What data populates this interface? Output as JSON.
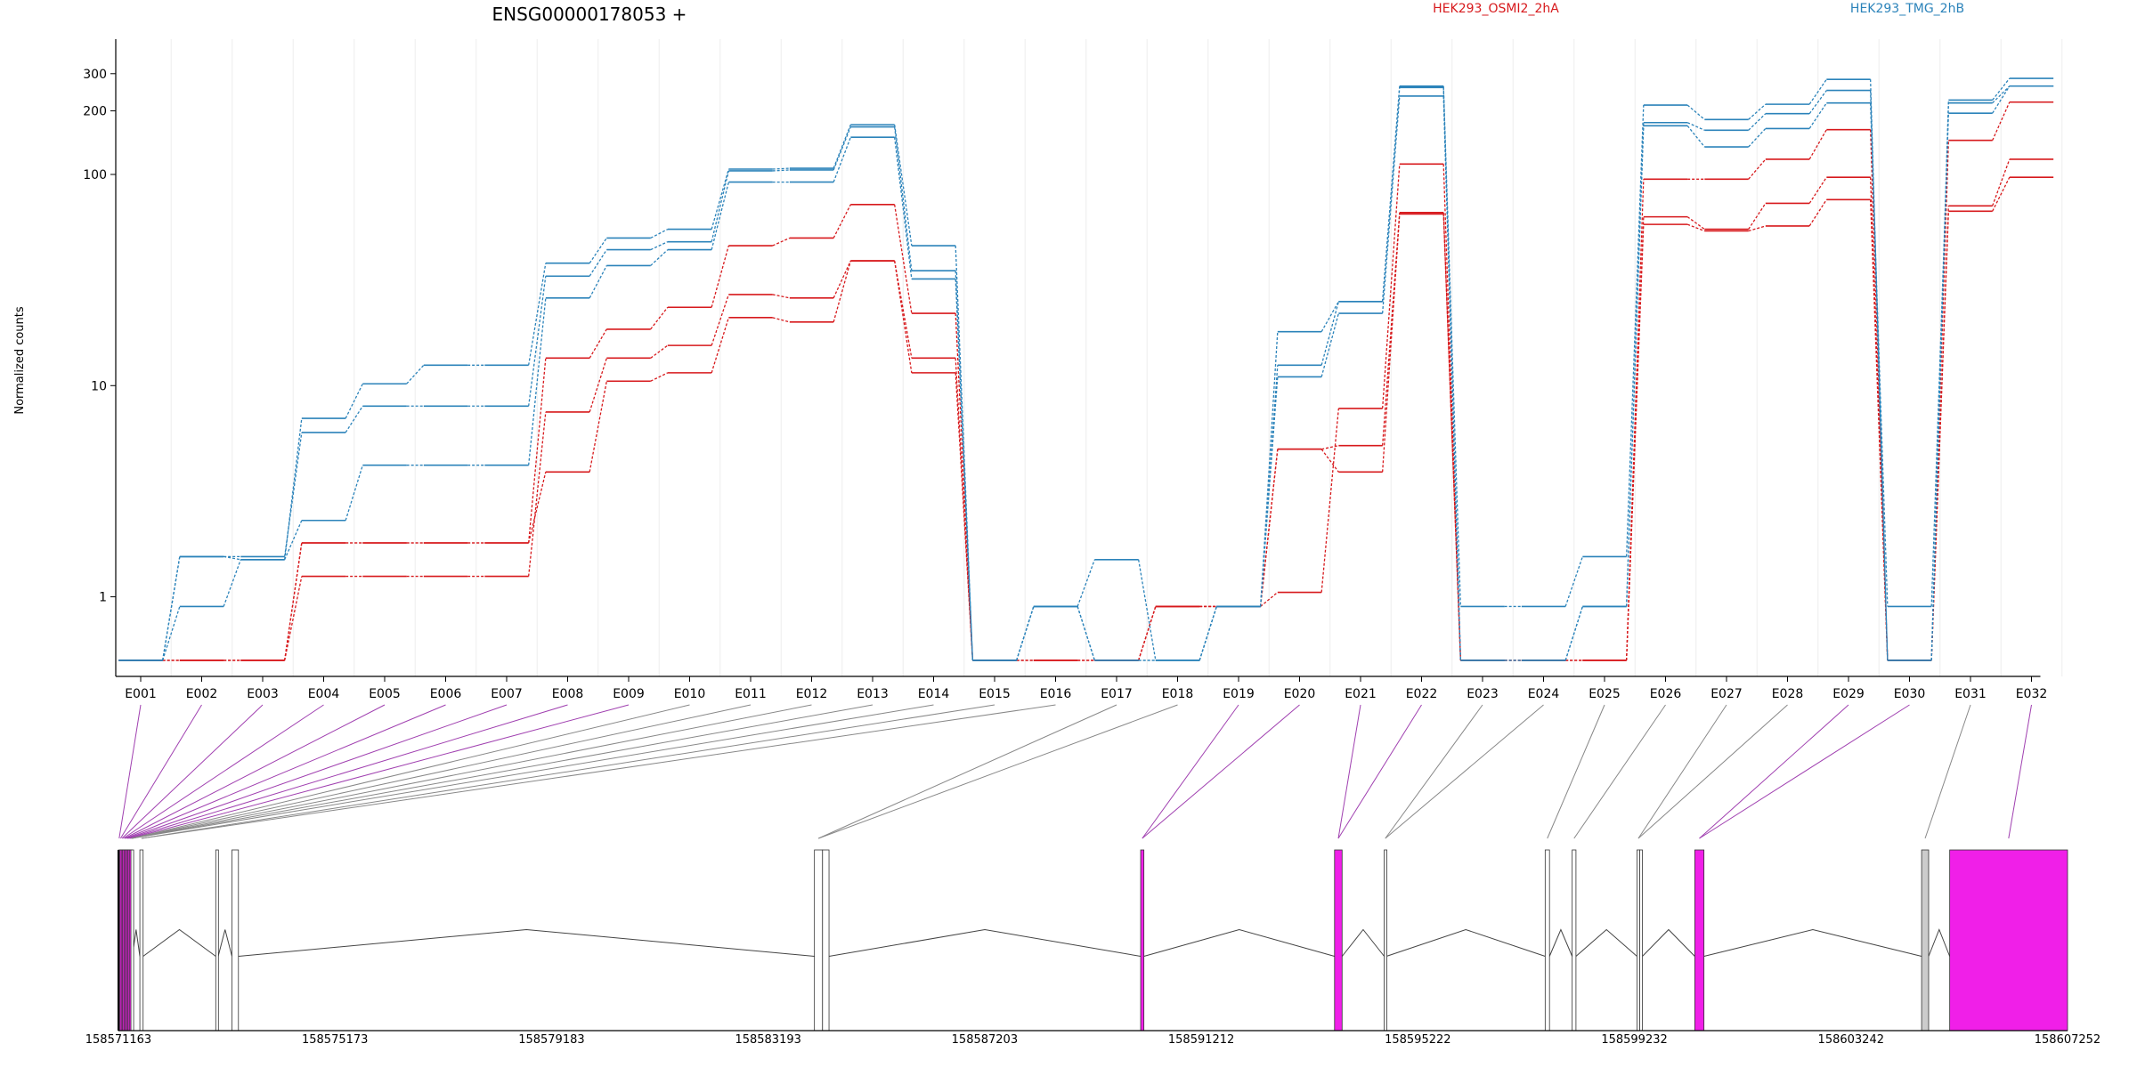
{
  "title": "ENSG00000178053 +",
  "legend": [
    {
      "label": "HEK293_OSMI2_2hA",
      "color": "#d7191c"
    },
    {
      "label": "HEK293_TMG_2hB",
      "color": "#2b83ba"
    }
  ],
  "colors": {
    "exon_highlight": "#f01fe8",
    "exon_plain": "#ffffff",
    "exon_grey": "#cccccc",
    "connector": "#888888",
    "connector_highlight": "#a040b0"
  },
  "chart_data": {
    "type": "line",
    "scale": "log",
    "ylabel": "Normalized counts",
    "yticks": [
      1,
      10,
      100,
      200,
      300
    ],
    "ylim": [
      0.5,
      360
    ],
    "categories": [
      "E001",
      "E002",
      "E003",
      "E004",
      "E005",
      "E006",
      "E007",
      "E008",
      "E009",
      "E010",
      "E011",
      "E012",
      "E013",
      "E014",
      "E015",
      "E016",
      "E017",
      "E018",
      "E019",
      "E020",
      "E021",
      "E022",
      "E023",
      "E024",
      "E025",
      "E026",
      "E027",
      "E028",
      "E029",
      "E030",
      "E031",
      "E032"
    ],
    "series": [
      {
        "group": "HEK293_OSMI2_2hA",
        "values": [
          0.5,
          0.5,
          0.5,
          1.8,
          1.8,
          1.8,
          1.8,
          13.5,
          18.5,
          23.5,
          46,
          50,
          72,
          22,
          0.5,
          0.5,
          0.5,
          0.9,
          0.9,
          1.05,
          7.8,
          112,
          0.5,
          0.5,
          0.5,
          95,
          95,
          118,
          163,
          0.5,
          145,
          220
        ]
      },
      {
        "group": "HEK293_OSMI2_2hA",
        "values": [
          0.5,
          0.5,
          0.5,
          1.25,
          1.25,
          1.25,
          1.25,
          7.5,
          13.5,
          15.5,
          27,
          26,
          39,
          13.5,
          0.5,
          0.5,
          0.5,
          0.9,
          0.9,
          5,
          5.2,
          66,
          0.5,
          0.5,
          0.5,
          63,
          55,
          73,
          97,
          0.5,
          71,
          118
        ]
      },
      {
        "group": "HEK293_OSMI2_2hA",
        "values": [
          0.5,
          0.5,
          0.5,
          1.8,
          1.8,
          1.8,
          1.8,
          3.9,
          10.5,
          11.5,
          21,
          20,
          39,
          11.5,
          0.5,
          0.5,
          0.5,
          0.9,
          0.9,
          5,
          3.9,
          65,
          0.5,
          0.5,
          0.5,
          58,
          54,
          57,
          76,
          0.5,
          67,
          97
        ]
      },
      {
        "group": "HEK293_TMG_2hB",
        "values": [
          0.5,
          1.55,
          1.5,
          7,
          10.2,
          12.5,
          12.5,
          38,
          50,
          55,
          106,
          107,
          172,
          46,
          0.5,
          0.9,
          1.5,
          0.5,
          0.9,
          18,
          25,
          262,
          0.9,
          0.9,
          1.55,
          213,
          182,
          215,
          282,
          0.5,
          225,
          285
        ]
      },
      {
        "group": "HEK293_TMG_2hB",
        "values": [
          0.5,
          1.55,
          1.55,
          6,
          8,
          8,
          8,
          33,
          44,
          48,
          104,
          105,
          168,
          35,
          0.5,
          0.9,
          0.5,
          0.5,
          0.9,
          12.5,
          25,
          258,
          0.5,
          0.5,
          0.9,
          176,
          162,
          194,
          250,
          0.5,
          218,
          262
        ]
      },
      {
        "group": "HEK293_TMG_2hB",
        "values": [
          0.5,
          0.9,
          1.5,
          2.3,
          4.2,
          4.2,
          4.2,
          26,
          37,
          44,
          92,
          92,
          150,
          32,
          0.5,
          0.9,
          0.5,
          0.5,
          0.9,
          11,
          22,
          235,
          0.5,
          0.5,
          0.9,
          170,
          135,
          165,
          218,
          0.9,
          195,
          262
        ]
      }
    ],
    "xlabel": ""
  },
  "gene_model": {
    "coord_ticks": [
      "158571163",
      "158575173",
      "158579183",
      "158583193",
      "158587203",
      "158591212",
      "158595222",
      "158599232",
      "158603242",
      "158607252"
    ],
    "coord_range": [
      158571163,
      158607252
    ],
    "exons": [
      {
        "id": "E001",
        "start": 158571163,
        "end": 158571190,
        "style": "highlight"
      },
      {
        "id": "E002",
        "start": 158571190,
        "end": 158571215,
        "style": "highlight"
      },
      {
        "id": "E003",
        "start": 158571215,
        "end": 158571240,
        "style": "highlight"
      },
      {
        "id": "E004",
        "start": 158571240,
        "end": 158571265,
        "style": "highlight"
      },
      {
        "id": "E005",
        "start": 158571265,
        "end": 158571290,
        "style": "highlight"
      },
      {
        "id": "E006",
        "start": 158571290,
        "end": 158571315,
        "style": "highlight"
      },
      {
        "id": "E007",
        "start": 158571315,
        "end": 158571340,
        "style": "highlight"
      },
      {
        "id": "E008",
        "start": 158571340,
        "end": 158571365,
        "style": "highlight"
      },
      {
        "id": "E009",
        "start": 158571365,
        "end": 158571395,
        "style": "highlight"
      },
      {
        "id": "E010",
        "start": 158571395,
        "end": 158571420,
        "style": "plain"
      },
      {
        "id": "E011",
        "start": 158571560,
        "end": 158571620,
        "style": "plain"
      },
      {
        "id": "E012",
        "start": 158572965,
        "end": 158573010,
        "style": "plain"
      },
      {
        "id": "E013",
        "start": 158573265,
        "end": 158573385,
        "style": "plain"
      },
      {
        "id": "E014",
        "start": 158584050,
        "end": 158584200,
        "style": "plain"
      },
      {
        "id": "E015",
        "start": 158584200,
        "end": 158584320,
        "style": "plain"
      },
      {
        "id": "E016",
        "start": 158590090,
        "end": 158590150,
        "style": "highlight"
      },
      {
        "id": "E017",
        "start": 158593680,
        "end": 158593820,
        "style": "highlight"
      },
      {
        "id": "E018",
        "start": 158594600,
        "end": 158594640,
        "style": "plain"
      },
      {
        "id": "E019",
        "start": 158597580,
        "end": 158597660,
        "style": "plain"
      },
      {
        "id": "E020",
        "start": 158598080,
        "end": 158598150,
        "style": "plain"
      },
      {
        "id": "E021",
        "start": 158599280,
        "end": 158599330,
        "style": "plain"
      },
      {
        "id": "E022",
        "start": 158599330,
        "end": 158599380,
        "style": "plain"
      },
      {
        "id": "E023",
        "start": 158600350,
        "end": 158600520,
        "style": "highlight"
      },
      {
        "id": "E024",
        "start": 158604550,
        "end": 158604680,
        "style": "grey"
      },
      {
        "id": "E025",
        "start": 158605070,
        "end": 158607252,
        "style": "highlight"
      }
    ],
    "connector_targets": [
      {
        "label": "E001",
        "exon": "E001"
      },
      {
        "label": "E002",
        "exon": "E002"
      },
      {
        "label": "E003",
        "exon": "E003"
      },
      {
        "label": "E004",
        "exon": "E004"
      },
      {
        "label": "E005",
        "exon": "E005"
      },
      {
        "label": "E006",
        "exon": "E006"
      },
      {
        "label": "E007",
        "exon": "E007"
      },
      {
        "label": "E008",
        "exon": "E008"
      },
      {
        "label": "E009",
        "exon": "E009"
      },
      {
        "label": "E010",
        "exon": "E010"
      },
      {
        "label": "E011",
        "exon": "E010"
      },
      {
        "label": "E012",
        "exon": "E010"
      },
      {
        "label": "E013",
        "exon": "E010"
      },
      {
        "label": "E014",
        "exon": "E010"
      },
      {
        "label": "E015",
        "exon": "E011"
      },
      {
        "label": "E016",
        "exon": "E011"
      },
      {
        "label": "E017",
        "exon": "E014"
      },
      {
        "label": "E018",
        "exon": "E014"
      },
      {
        "label": "E019",
        "exon": "E016"
      },
      {
        "label": "E020",
        "exon": "E016"
      },
      {
        "label": "E021",
        "exon": "E017"
      },
      {
        "label": "E022",
        "exon": "E017"
      },
      {
        "label": "E023",
        "exon": "E018"
      },
      {
        "label": "E024",
        "exon": "E018"
      },
      {
        "label": "E025",
        "exon": "E019"
      },
      {
        "label": "E026",
        "exon": "E020"
      },
      {
        "label": "E027",
        "exon": "E021"
      },
      {
        "label": "E028",
        "exon": "E021"
      },
      {
        "label": "E029",
        "exon": "E023"
      },
      {
        "label": "E030",
        "exon": "E023"
      },
      {
        "label": "E031",
        "exon": "E024"
      },
      {
        "label": "E032",
        "exon": "E025"
      }
    ]
  }
}
